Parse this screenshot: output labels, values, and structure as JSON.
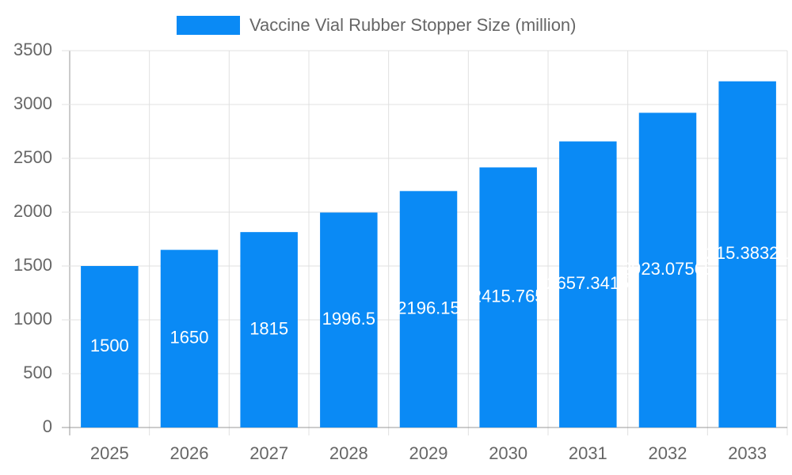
{
  "chart_data": {
    "type": "bar",
    "categories": [
      "2025",
      "2026",
      "2027",
      "2028",
      "2029",
      "2030",
      "2031",
      "2032",
      "2033"
    ],
    "series": [
      {
        "name": "Vaccine Vial Rubber Stopper Size (million)",
        "color": "#0a8af5",
        "values": [
          1500,
          1650,
          1815,
          1996.5,
          2196.15,
          2415.765,
          2657.3415,
          2923.07565,
          3215.383215
        ]
      }
    ],
    "ylim": [
      0,
      3500
    ],
    "yticks": [
      0,
      500,
      1000,
      1500,
      2000,
      2500,
      3000,
      3500
    ],
    "grid": true
  }
}
